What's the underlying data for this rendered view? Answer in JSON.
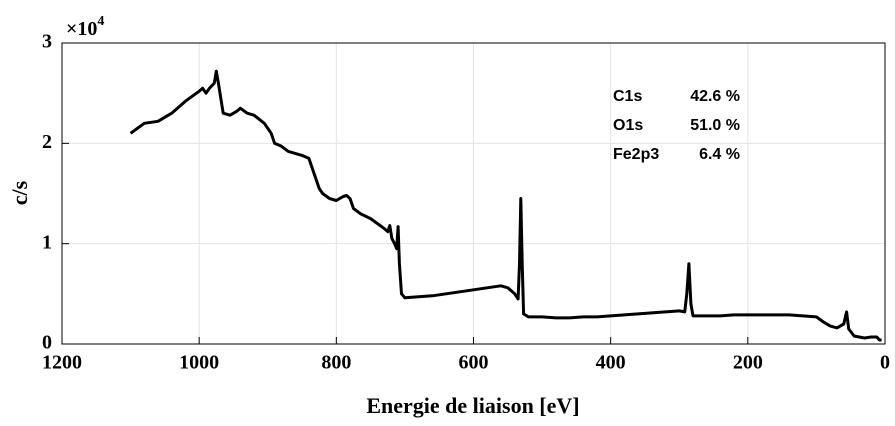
{
  "chart_data": {
    "type": "line",
    "xlabel": "Energie de liaison [eV]",
    "ylabel": "c/s",
    "y_multiplier": {
      "base": "×10",
      "exponent": "4"
    },
    "annotations": [
      {
        "name": "C1s",
        "value": "42.6 %"
      },
      {
        "name": "O1s",
        "value": "51.0 %"
      },
      {
        "name": "Fe2p3",
        "value": "6.4 %"
      }
    ],
    "xlim": [
      1200,
      0
    ],
    "x_reversed": true,
    "xticks": [
      1200,
      1000,
      800,
      600,
      400,
      200,
      0
    ],
    "ylim": [
      0,
      3
    ],
    "yticks": [
      0,
      1,
      2,
      3
    ],
    "grid": true,
    "series": [
      {
        "color": "#000000",
        "x": [
          1100,
          1090,
          1080,
          1060,
          1040,
          1020,
          1000,
          995,
          990,
          985,
          978,
          975,
          972,
          965,
          955,
          945,
          940,
          930,
          920,
          905,
          895,
          890,
          880,
          870,
          860,
          850,
          840,
          835,
          830,
          825,
          820,
          810,
          800,
          790,
          785,
          780,
          775,
          765,
          750,
          740,
          730,
          725,
          722,
          719,
          715,
          712,
          710,
          708,
          705,
          700,
          680,
          660,
          640,
          620,
          600,
          580,
          560,
          550,
          540,
          535,
          533,
          531,
          529,
          527,
          520,
          500,
          480,
          460,
          440,
          420,
          400,
          380,
          360,
          340,
          320,
          300,
          292,
          289,
          286,
          283,
          280,
          260,
          240,
          220,
          200,
          180,
          160,
          140,
          120,
          100,
          90,
          80,
          70,
          60,
          56,
          53,
          45,
          30,
          20,
          12,
          8,
          5
        ],
        "values": [
          2.1,
          2.15,
          2.2,
          2.22,
          2.3,
          2.42,
          2.52,
          2.55,
          2.5,
          2.55,
          2.6,
          2.72,
          2.6,
          2.3,
          2.28,
          2.32,
          2.35,
          2.3,
          2.28,
          2.2,
          2.1,
          2.0,
          1.97,
          1.92,
          1.9,
          1.88,
          1.85,
          1.75,
          1.65,
          1.55,
          1.5,
          1.45,
          1.43,
          1.47,
          1.48,
          1.45,
          1.35,
          1.3,
          1.25,
          1.2,
          1.15,
          1.12,
          1.18,
          1.05,
          1.0,
          0.95,
          1.17,
          0.8,
          0.5,
          0.46,
          0.47,
          0.48,
          0.5,
          0.52,
          0.54,
          0.56,
          0.58,
          0.56,
          0.5,
          0.45,
          0.8,
          1.45,
          0.8,
          0.3,
          0.27,
          0.27,
          0.26,
          0.26,
          0.27,
          0.27,
          0.28,
          0.29,
          0.3,
          0.31,
          0.32,
          0.33,
          0.32,
          0.5,
          0.8,
          0.4,
          0.28,
          0.28,
          0.28,
          0.29,
          0.29,
          0.29,
          0.29,
          0.29,
          0.28,
          0.27,
          0.22,
          0.18,
          0.16,
          0.2,
          0.32,
          0.15,
          0.08,
          0.06,
          0.07,
          0.07,
          0.04,
          0.04
        ]
      }
    ]
  }
}
